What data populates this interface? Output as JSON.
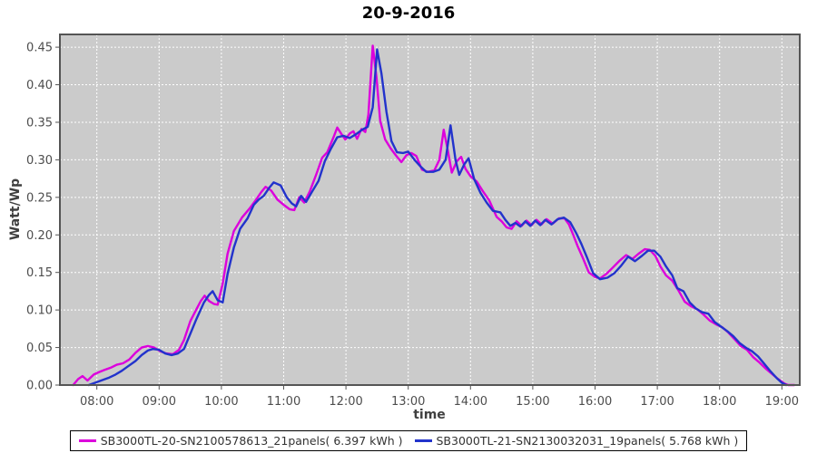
{
  "chart_data": {
    "type": "line",
    "title": "20-9-2016",
    "xlabel": "time",
    "ylabel": "Watt/Wp",
    "xlim": [
      7.407,
      19.287
    ],
    "ylim": [
      0,
      0.467
    ],
    "grid": "on",
    "grid_style": "white dashed on gray plot background",
    "grid_color": "#ffffff",
    "plot_bg": "#cbcbcb",
    "legend_position": "bottom-center",
    "x_ticks": [
      {
        "t": 8,
        "label": "08:00"
      },
      {
        "t": 9,
        "label": "09:00"
      },
      {
        "t": 10,
        "label": "10:00"
      },
      {
        "t": 11,
        "label": "11:00"
      },
      {
        "t": 12,
        "label": "12:00"
      },
      {
        "t": 13,
        "label": "13:00"
      },
      {
        "t": 14,
        "label": "14:00"
      },
      {
        "t": 15,
        "label": "15:00"
      },
      {
        "t": 16,
        "label": "16:00"
      },
      {
        "t": 17,
        "label": "17:00"
      },
      {
        "t": 18,
        "label": "18:00"
      },
      {
        "t": 19,
        "label": "19:00"
      }
    ],
    "y_ticks": [
      {
        "v": 0.0,
        "label": "0.00"
      },
      {
        "v": 0.05,
        "label": "0.05"
      },
      {
        "v": 0.1,
        "label": "0.10"
      },
      {
        "v": 0.15,
        "label": "0.15"
      },
      {
        "v": 0.2,
        "label": "0.20"
      },
      {
        "v": 0.25,
        "label": "0.25"
      },
      {
        "v": 0.3,
        "label": "0.30"
      },
      {
        "v": 0.35,
        "label": "0.35"
      },
      {
        "v": 0.4,
        "label": "0.40"
      },
      {
        "v": 0.45,
        "label": "0.45"
      }
    ],
    "series": [
      {
        "name": "SB3000TL-20-SN2100578613_21panels( 6.397 kWh )",
        "color": "#dc00dc",
        "points": [
          [
            7.62,
            0.0
          ],
          [
            7.7,
            0.008
          ],
          [
            7.77,
            0.012
          ],
          [
            7.85,
            0.006
          ],
          [
            7.95,
            0.014
          ],
          [
            8.03,
            0.017
          ],
          [
            8.12,
            0.02
          ],
          [
            8.22,
            0.023
          ],
          [
            8.32,
            0.027
          ],
          [
            8.42,
            0.029
          ],
          [
            8.52,
            0.034
          ],
          [
            8.62,
            0.043
          ],
          [
            8.72,
            0.05
          ],
          [
            8.82,
            0.052
          ],
          [
            8.92,
            0.05
          ],
          [
            9.02,
            0.045
          ],
          [
            9.12,
            0.042
          ],
          [
            9.22,
            0.041
          ],
          [
            9.32,
            0.047
          ],
          [
            9.4,
            0.06
          ],
          [
            9.5,
            0.085
          ],
          [
            9.6,
            0.101
          ],
          [
            9.67,
            0.112
          ],
          [
            9.73,
            0.119
          ],
          [
            9.8,
            0.112
          ],
          [
            9.88,
            0.108
          ],
          [
            9.94,
            0.107
          ],
          [
            10.02,
            0.135
          ],
          [
            10.1,
            0.175
          ],
          [
            10.2,
            0.205
          ],
          [
            10.33,
            0.223
          ],
          [
            10.45,
            0.235
          ],
          [
            10.55,
            0.246
          ],
          [
            10.64,
            0.257
          ],
          [
            10.71,
            0.264
          ],
          [
            10.8,
            0.259
          ],
          [
            10.9,
            0.247
          ],
          [
            11.0,
            0.24
          ],
          [
            11.1,
            0.234
          ],
          [
            11.17,
            0.233
          ],
          [
            11.25,
            0.25
          ],
          [
            11.33,
            0.243
          ],
          [
            11.42,
            0.258
          ],
          [
            11.52,
            0.28
          ],
          [
            11.62,
            0.303
          ],
          [
            11.7,
            0.31
          ],
          [
            11.8,
            0.33
          ],
          [
            11.86,
            0.343
          ],
          [
            11.93,
            0.334
          ],
          [
            11.99,
            0.327
          ],
          [
            12.06,
            0.335
          ],
          [
            12.12,
            0.338
          ],
          [
            12.18,
            0.328
          ],
          [
            12.25,
            0.341
          ],
          [
            12.31,
            0.337
          ],
          [
            12.36,
            0.36
          ],
          [
            12.43,
            0.452
          ],
          [
            12.49,
            0.41
          ],
          [
            12.55,
            0.352
          ],
          [
            12.63,
            0.327
          ],
          [
            12.72,
            0.315
          ],
          [
            12.8,
            0.306
          ],
          [
            12.89,
            0.297
          ],
          [
            12.97,
            0.306
          ],
          [
            13.05,
            0.309
          ],
          [
            13.13,
            0.305
          ],
          [
            13.22,
            0.287
          ],
          [
            13.32,
            0.284
          ],
          [
            13.42,
            0.286
          ],
          [
            13.5,
            0.3
          ],
          [
            13.57,
            0.34
          ],
          [
            13.63,
            0.315
          ],
          [
            13.7,
            0.283
          ],
          [
            13.78,
            0.298
          ],
          [
            13.85,
            0.304
          ],
          [
            13.92,
            0.288
          ],
          [
            14.0,
            0.278
          ],
          [
            14.1,
            0.271
          ],
          [
            14.2,
            0.258
          ],
          [
            14.3,
            0.246
          ],
          [
            14.42,
            0.224
          ],
          [
            14.5,
            0.218
          ],
          [
            14.58,
            0.21
          ],
          [
            14.66,
            0.208
          ],
          [
            14.74,
            0.218
          ],
          [
            14.82,
            0.212
          ],
          [
            14.9,
            0.219
          ],
          [
            14.98,
            0.213
          ],
          [
            15.06,
            0.22
          ],
          [
            15.14,
            0.214
          ],
          [
            15.22,
            0.221
          ],
          [
            15.32,
            0.215
          ],
          [
            15.42,
            0.222
          ],
          [
            15.51,
            0.222
          ],
          [
            15.58,
            0.214
          ],
          [
            15.65,
            0.2
          ],
          [
            15.72,
            0.185
          ],
          [
            15.8,
            0.17
          ],
          [
            15.9,
            0.15
          ],
          [
            16.0,
            0.144
          ],
          [
            16.08,
            0.142
          ],
          [
            16.18,
            0.148
          ],
          [
            16.28,
            0.156
          ],
          [
            16.4,
            0.166
          ],
          [
            16.5,
            0.173
          ],
          [
            16.6,
            0.168
          ],
          [
            16.7,
            0.175
          ],
          [
            16.8,
            0.181
          ],
          [
            16.88,
            0.18
          ],
          [
            16.97,
            0.172
          ],
          [
            17.05,
            0.158
          ],
          [
            17.14,
            0.146
          ],
          [
            17.24,
            0.139
          ],
          [
            17.34,
            0.126
          ],
          [
            17.44,
            0.111
          ],
          [
            17.54,
            0.105
          ],
          [
            17.64,
            0.101
          ],
          [
            17.74,
            0.094
          ],
          [
            17.84,
            0.086
          ],
          [
            17.94,
            0.081
          ],
          [
            18.04,
            0.077
          ],
          [
            18.14,
            0.07
          ],
          [
            18.24,
            0.061
          ],
          [
            18.34,
            0.052
          ],
          [
            18.44,
            0.047
          ],
          [
            18.54,
            0.037
          ],
          [
            18.64,
            0.03
          ],
          [
            18.74,
            0.022
          ],
          [
            18.84,
            0.015
          ],
          [
            18.94,
            0.008
          ],
          [
            19.04,
            0.002
          ],
          [
            19.1,
            0.0
          ],
          [
            19.2,
            0.0
          ]
        ]
      },
      {
        "name": "SB3000TL-21-SN2130032031_19panels( 5.768 kWh )",
        "color": "#2233cc",
        "points": [
          [
            7.87,
            0.0
          ],
          [
            8.0,
            0.004
          ],
          [
            8.1,
            0.007
          ],
          [
            8.2,
            0.01
          ],
          [
            8.3,
            0.014
          ],
          [
            8.4,
            0.019
          ],
          [
            8.5,
            0.025
          ],
          [
            8.62,
            0.032
          ],
          [
            8.72,
            0.04
          ],
          [
            8.82,
            0.046
          ],
          [
            8.9,
            0.048
          ],
          [
            9.0,
            0.047
          ],
          [
            9.1,
            0.042
          ],
          [
            9.2,
            0.04
          ],
          [
            9.3,
            0.042
          ],
          [
            9.4,
            0.048
          ],
          [
            9.5,
            0.068
          ],
          [
            9.6,
            0.088
          ],
          [
            9.72,
            0.11
          ],
          [
            9.8,
            0.12
          ],
          [
            9.86,
            0.125
          ],
          [
            9.94,
            0.113
          ],
          [
            10.02,
            0.11
          ],
          [
            10.1,
            0.148
          ],
          [
            10.2,
            0.183
          ],
          [
            10.3,
            0.208
          ],
          [
            10.42,
            0.222
          ],
          [
            10.52,
            0.24
          ],
          [
            10.6,
            0.247
          ],
          [
            10.68,
            0.252
          ],
          [
            10.77,
            0.263
          ],
          [
            10.84,
            0.27
          ],
          [
            10.95,
            0.266
          ],
          [
            11.05,
            0.25
          ],
          [
            11.13,
            0.242
          ],
          [
            11.2,
            0.238
          ],
          [
            11.28,
            0.252
          ],
          [
            11.36,
            0.244
          ],
          [
            11.46,
            0.258
          ],
          [
            11.56,
            0.272
          ],
          [
            11.66,
            0.298
          ],
          [
            11.76,
            0.315
          ],
          [
            11.86,
            0.33
          ],
          [
            11.96,
            0.332
          ],
          [
            12.06,
            0.329
          ],
          [
            12.16,
            0.334
          ],
          [
            12.26,
            0.34
          ],
          [
            12.35,
            0.344
          ],
          [
            12.43,
            0.37
          ],
          [
            12.5,
            0.447
          ],
          [
            12.57,
            0.415
          ],
          [
            12.65,
            0.364
          ],
          [
            12.73,
            0.325
          ],
          [
            12.82,
            0.31
          ],
          [
            12.92,
            0.309
          ],
          [
            13.0,
            0.311
          ],
          [
            13.1,
            0.3
          ],
          [
            13.2,
            0.291
          ],
          [
            13.29,
            0.284
          ],
          [
            13.4,
            0.284
          ],
          [
            13.5,
            0.287
          ],
          [
            13.6,
            0.3
          ],
          [
            13.68,
            0.346
          ],
          [
            13.76,
            0.3
          ],
          [
            13.82,
            0.28
          ],
          [
            13.9,
            0.294
          ],
          [
            13.97,
            0.302
          ],
          [
            14.06,
            0.274
          ],
          [
            14.16,
            0.256
          ],
          [
            14.26,
            0.243
          ],
          [
            14.36,
            0.232
          ],
          [
            14.48,
            0.23
          ],
          [
            14.56,
            0.22
          ],
          [
            14.64,
            0.212
          ],
          [
            14.72,
            0.216
          ],
          [
            14.8,
            0.211
          ],
          [
            14.88,
            0.218
          ],
          [
            14.96,
            0.212
          ],
          [
            15.04,
            0.219
          ],
          [
            15.12,
            0.213
          ],
          [
            15.2,
            0.22
          ],
          [
            15.3,
            0.214
          ],
          [
            15.4,
            0.221
          ],
          [
            15.5,
            0.223
          ],
          [
            15.6,
            0.217
          ],
          [
            15.7,
            0.202
          ],
          [
            15.78,
            0.188
          ],
          [
            15.87,
            0.17
          ],
          [
            15.97,
            0.149
          ],
          [
            16.08,
            0.141
          ],
          [
            16.2,
            0.143
          ],
          [
            16.31,
            0.149
          ],
          [
            16.42,
            0.159
          ],
          [
            16.53,
            0.171
          ],
          [
            16.64,
            0.165
          ],
          [
            16.75,
            0.172
          ],
          [
            16.85,
            0.179
          ],
          [
            16.95,
            0.179
          ],
          [
            17.05,
            0.171
          ],
          [
            17.14,
            0.158
          ],
          [
            17.24,
            0.146
          ],
          [
            17.32,
            0.129
          ],
          [
            17.42,
            0.125
          ],
          [
            17.52,
            0.11
          ],
          [
            17.62,
            0.102
          ],
          [
            17.72,
            0.097
          ],
          [
            17.82,
            0.095
          ],
          [
            17.92,
            0.084
          ],
          [
            18.02,
            0.078
          ],
          [
            18.12,
            0.072
          ],
          [
            18.22,
            0.065
          ],
          [
            18.32,
            0.056
          ],
          [
            18.42,
            0.05
          ],
          [
            18.52,
            0.045
          ],
          [
            18.62,
            0.038
          ],
          [
            18.72,
            0.028
          ],
          [
            18.82,
            0.018
          ],
          [
            18.92,
            0.009
          ],
          [
            19.0,
            0.003
          ],
          [
            19.07,
            0.0
          ]
        ]
      }
    ]
  }
}
